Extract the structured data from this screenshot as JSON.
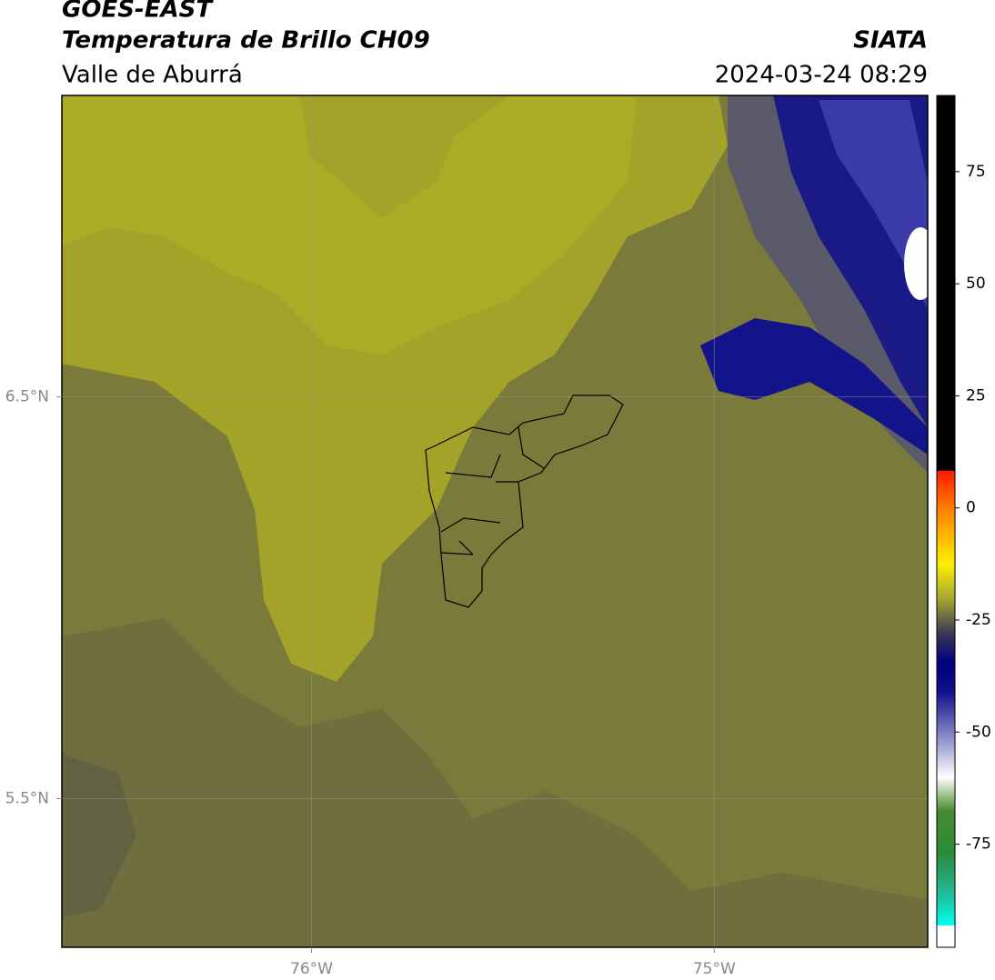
{
  "header": {
    "title": "GOES-EAST",
    "subtitle": "Temperatura de Brillo CH09",
    "region": "Valle de Aburrá",
    "source": "SIATA",
    "timestamp": "2024-03-24 08:29"
  },
  "map": {
    "type": "map",
    "xlim": [
      -76.62,
      -74.47
    ],
    "ylim": [
      5.13,
      7.25
    ],
    "xticks": [
      {
        "value": -76,
        "label": "76°W"
      },
      {
        "value": -75,
        "label": "75°W"
      }
    ],
    "yticks": [
      {
        "value": 6.5,
        "label": "6.5°N"
      },
      {
        "value": 5.5,
        "label": "5.5°N"
      }
    ],
    "grid": true
  },
  "colorbar": {
    "lim": [
      -98,
      92
    ],
    "ticks": [
      75,
      50,
      25,
      0,
      -25,
      -50,
      -75
    ]
  }
}
